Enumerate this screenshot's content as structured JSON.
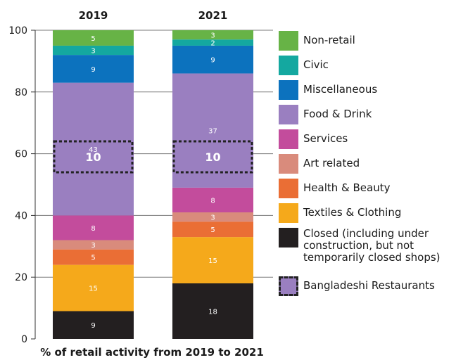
{
  "chart_data": {
    "type": "bar",
    "stacked": true,
    "categories": [
      "2019",
      "2021"
    ],
    "xlabel": "% of retail activity from 2019 to 2021",
    "ylabel": "",
    "ylim": [
      0,
      100
    ],
    "yticks": [
      0,
      20,
      40,
      60,
      80,
      100
    ],
    "grid": true,
    "legend_position": "right",
    "series": [
      {
        "name": "Closed (including under\nconstruction, but not\ntemporarily closed shops)",
        "color": "#231f20",
        "values": [
          9,
          18
        ]
      },
      {
        "name": "Textiles & Clothing",
        "color": "#f5a91b",
        "values": [
          15,
          15
        ]
      },
      {
        "name": "Health & Beauty",
        "color": "#ea6e35",
        "values": [
          5,
          5
        ]
      },
      {
        "name": "Art related",
        "color": "#d98b7c",
        "values": [
          3,
          3
        ]
      },
      {
        "name": "Services",
        "color": "#c34c9c",
        "values": [
          8,
          8
        ]
      },
      {
        "name": "Food & Drink",
        "color": "#9a7fc0",
        "values": [
          43,
          37
        ]
      },
      {
        "name": "Miscellaneous",
        "color": "#0c72be",
        "values": [
          9,
          9
        ]
      },
      {
        "name": "Civic",
        "color": "#14a8a0",
        "values": [
          3,
          2
        ]
      },
      {
        "name": "Non-retail",
        "color": "#67b346",
        "values": [
          5,
          3
        ]
      }
    ],
    "highlight": {
      "name": "Bangladeshi Restaurants",
      "values": [
        10,
        10
      ],
      "range": [
        54,
        64
      ]
    }
  },
  "legend": [
    {
      "label": "Non-retail",
      "color": "#67b346",
      "style": "solid"
    },
    {
      "label": "Civic",
      "color": "#14a8a0",
      "style": "solid"
    },
    {
      "label": "Miscellaneous",
      "color": "#0c72be",
      "style": "solid"
    },
    {
      "label": "Food & Drink",
      "color": "#9a7fc0",
      "style": "solid"
    },
    {
      "label": "Services",
      "color": "#c34c9c",
      "style": "solid"
    },
    {
      "label": "Art related",
      "color": "#d98b7c",
      "style": "solid"
    },
    {
      "label": "Health & Beauty",
      "color": "#ea6e35",
      "style": "solid"
    },
    {
      "label": "Textiles & Clothing",
      "color": "#f5a91b",
      "style": "solid"
    },
    {
      "label": "Closed (including under\nconstruction, but not\ntemporarily closed shops)",
      "color": "#231f20",
      "style": "solid"
    },
    {
      "label": "Bangladeshi Restaurants",
      "color": "#9a7fc0",
      "style": "dashed"
    }
  ]
}
